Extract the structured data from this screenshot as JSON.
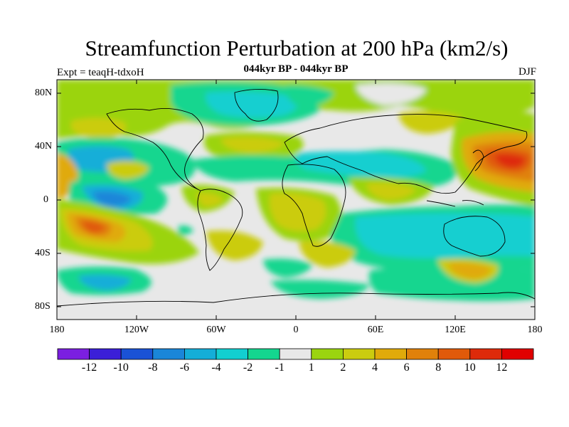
{
  "title": "Streamfunction Perturbation at 200 hPa (km2/s)",
  "experiment_label": "Expt = teaqH-tdxoH",
  "period_label": "044kyr BP - 044kyr BP",
  "season_label": "DJF",
  "lat_labels": [
    "80N",
    "40N",
    "0",
    "40S",
    "80S"
  ],
  "lon_labels": [
    "180",
    "120W",
    "60W",
    "0",
    "60E",
    "120E",
    "180"
  ],
  "colorbar": {
    "labels": [
      "-12",
      "-10",
      "-8",
      "-6",
      "-4",
      "-2",
      "-1",
      "1",
      "2",
      "4",
      "6",
      "8",
      "10",
      "12"
    ],
    "colors": [
      "#7b1fe0",
      "#3b1fd8",
      "#1a52d6",
      "#1a86d9",
      "#14aed8",
      "#12cfd0",
      "#14d68f",
      "#e8e8e8",
      "#9bd40f",
      "#cbcc0f",
      "#e0aa0a",
      "#e0810a",
      "#e05a0a",
      "#de2a0a",
      "#e00000"
    ]
  },
  "colors": {
    "background_fill": "#e8e8e8",
    "coastline": "#000000"
  }
}
